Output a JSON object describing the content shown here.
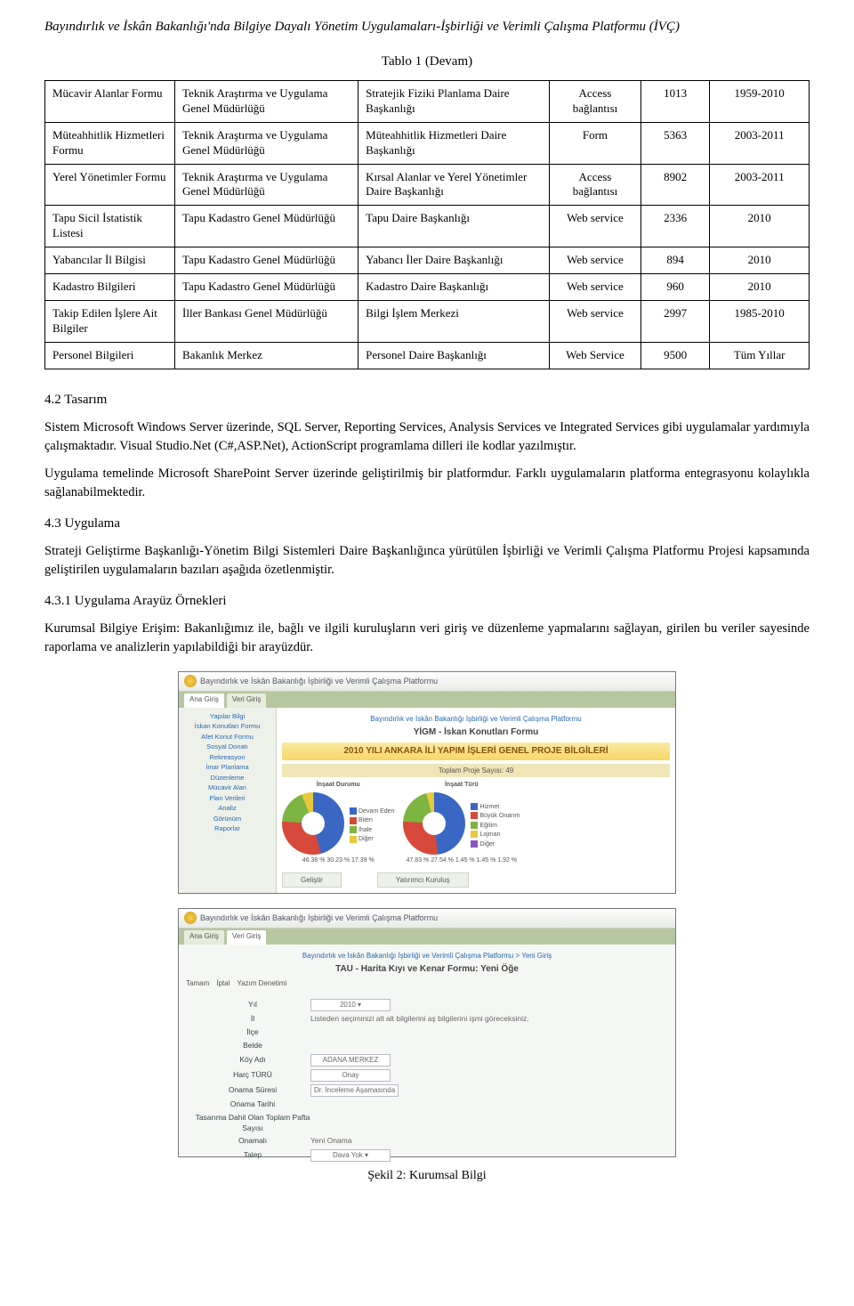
{
  "header": "Bayındırlık ve İskân Bakanlığı'nda Bilgiye Dayalı Yönetim Uygulamaları-İşbirliği ve Verimli Çalışma Platformu (İVÇ)",
  "table_caption": "Tablo 1 (Devam)",
  "table": {
    "rows": [
      [
        "Mücavir Alanlar Formu",
        "Teknik Araştırma ve Uygulama Genel Müdürlüğü",
        "Stratejik Fiziki Planlama Daire Başkanlığı",
        "Access bağlantısı",
        "1013",
        "1959-2010"
      ],
      [
        "Müteahhitlik Hizmetleri Formu",
        "Teknik Araştırma ve Uygulama Genel Müdürlüğü",
        "Müteahhitlik Hizmetleri Daire Başkanlığı",
        "Form",
        "5363",
        "2003-2011"
      ],
      [
        "Yerel Yönetimler Formu",
        "Teknik Araştırma ve Uygulama Genel Müdürlüğü",
        "Kırsal Alanlar ve Yerel Yönetimler Daire Başkanlığı",
        "Access bağlantısı",
        "8902",
        "2003-2011"
      ],
      [
        "Tapu Sicil İstatistik Listesi",
        "Tapu Kadastro Genel Müdürlüğü",
        "Tapu Daire Başkanlığı",
        "Web service",
        "2336",
        "2010"
      ],
      [
        "Yabancılar İl Bilgisi",
        "Tapu Kadastro Genel Müdürlüğü",
        "Yabancı İler Daire Başkanlığı",
        "Web service",
        "894",
        "2010"
      ],
      [
        "Kadastro Bilgileri",
        "Tapu Kadastro Genel Müdürlüğü",
        "Kadastro Daire Başkanlığı",
        "Web service",
        "960",
        "2010"
      ],
      [
        "Takip Edilen İşlere Ait Bilgiler",
        "İller Bankası Genel Müdürlüğü",
        "Bilgi İşlem Merkezi",
        "Web service",
        "2997",
        "1985-2010"
      ],
      [
        "Personel Bilgileri",
        "Bakanlık Merkez",
        "Personel Daire Başkanlığı",
        "Web Service",
        "9500",
        "Tüm Yıllar"
      ]
    ],
    "col_widths": [
      "17%",
      "24%",
      "25%",
      "12%",
      "9%",
      "13%"
    ]
  },
  "sections": {
    "s42": "4.2 Tasarım",
    "p1": "Sistem Microsoft Windows Server üzerinde, SQL Server, Reporting Services, Analysis Services ve Integrated Services gibi uygulamalar yardımıyla çalışmaktadır. Visual Studio.Net (C#,ASP.Net), ActionScript programlama dilleri ile kodlar yazılmıştır.",
    "p2": "Uygulama temelinde Microsoft SharePoint Server üzerinde geliştirilmiş bir platformdur. Farklı uygulamaların platforma entegrasyonu kolaylıkla sağlanabilmektedir.",
    "s43": "4.3 Uygulama",
    "p3": "Strateji Geliştirme Başkanlığı-Yönetim Bilgi Sistemleri Daire Başkanlığınca yürütülen İşbirliği ve Verimli Çalışma Platformu Projesi kapsamında geliştirilen uygulamaların bazıları aşağıda özetlenmiştir.",
    "s431": "4.3.1 Uygulama Arayüz Örnekleri",
    "p4": "Kurumsal Bilgiye Erişim: Bakanlığımız ile, bağlı ve ilgili kuruluşların veri giriş ve düzenleme yapmalarını sağlayan, girilen bu veriler sayesinde raporlama ve analizlerin yapılabildiği bir arayüzdür."
  },
  "fig1": {
    "topbar": "Bayındırlık ve İskân Bakanlığı İşbirliği ve Verimli Çalışma Platformu",
    "breadcrumb": "Bayındırlık ve İskân Bakanlığı İşbirliği ve Verimli Çalışma Platformu",
    "form_title": "YİGM - İskan Konutları Formu",
    "sidebar": [
      "Yapılar Bilgi",
      "İskan Konutları Formu",
      "Afet Konut Formu",
      "Sosyal Donatı",
      "Rekreasyon",
      "İmar Planlama",
      "Düzenleme",
      "Mücavir Alan",
      "Plan Verileri",
      "Analiz",
      "Görünüm",
      "Raporlar"
    ],
    "banner": "2010 YILI ANKARA İLİ YAPIM İŞLERİ GENEL PROJE BİLGİLERİ",
    "sub": "Toplam Proje Sayısı: 49",
    "chart1": {
      "title": "İnşaat Durumu",
      "labels": [
        "46.38 %",
        "30.23 %",
        "17.39 %"
      ],
      "legend": [
        [
          "#3a66c4",
          "Devam Eden"
        ],
        [
          "#d7493a",
          "Biten"
        ],
        [
          "#7eb441",
          "İhale"
        ],
        [
          "#e8c83c",
          "Diğer"
        ]
      ]
    },
    "chart2": {
      "title": "İnşaat Türü",
      "labels": [
        "47.83 %",
        "27.54 %",
        "1.45 %",
        "1.45 %",
        "1.92 %"
      ],
      "legend": [
        [
          "#3a66c4",
          "Hizmet"
        ],
        [
          "#d7493a",
          "Büyük Onarım"
        ],
        [
          "#7eb441",
          "Eğitim"
        ],
        [
          "#e8c83c",
          "Lojman"
        ],
        [
          "#8956c0",
          "Diğer"
        ]
      ]
    },
    "bottom_tabs": [
      "Geliştir",
      "Yatırımcı Kuruluş"
    ]
  },
  "fig2": {
    "topbar": "Bayındırlık ve İskân Bakanlığı İşbirliği ve Verimli Çalışma Platformu",
    "breadcrumb": "Bayındırlık ve İskân Bakanlığı İşbirliği ve Verimli Çalışma Platformu > Yeni Giriş",
    "title": "TAU - Harita Kıyı ve Kenar Formu: Yeni Öğe",
    "toolbar": [
      "Tamam",
      "İptal",
      "Yazım Denetimi"
    ],
    "form": [
      [
        "Yıl",
        "2010 ▾"
      ],
      [
        "İl",
        "Listeden seçiminizi alt alt bilgilerini aş bilgilerini işmi göreceksiniz."
      ],
      [
        "İlçe",
        ""
      ],
      [
        "Belde",
        ""
      ],
      [
        "Köy Adı",
        "ADANA MERKEZ"
      ],
      [
        "Harç TÜRÜ",
        "Onay"
      ],
      [
        "Onama Süresi",
        "Dr. İnceleme Aşamasında"
      ],
      [
        "Onama Tarihi",
        ""
      ],
      [
        "Tasarıma Dahil Olan Toplam Pafta Sayısı",
        ""
      ],
      [
        "Onamalı",
        "Yeni Onama"
      ],
      [
        "Talep",
        "Dava Yok ▾"
      ]
    ]
  },
  "fig_caption": "Şekil 2: Kurumsal Bilgi"
}
